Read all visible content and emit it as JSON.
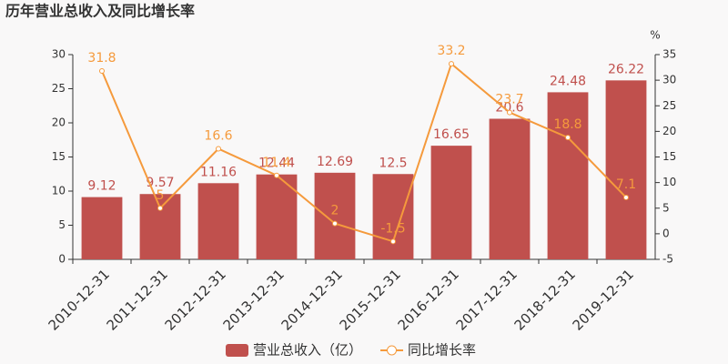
{
  "chart_data": {
    "type": "bar",
    "title": "历年营业总收入及同比增长率",
    "y2_label": "%",
    "categories": [
      "2010-12-31",
      "2011-12-31",
      "2012-12-31",
      "2013-12-31",
      "2014-12-31",
      "2015-12-31",
      "2016-12-31",
      "2017-12-31",
      "2018-12-31",
      "2019-12-31"
    ],
    "series": [
      {
        "name": "营业总收入（亿）",
        "type": "bar",
        "color": "#c0504d",
        "values": [
          9.12,
          9.57,
          11.16,
          12.44,
          12.69,
          12.5,
          16.65,
          20.6,
          24.48,
          26.22
        ]
      },
      {
        "name": "同比增长率",
        "type": "line",
        "axis": "y2",
        "color": "#f59a3c",
        "values": [
          31.8,
          5,
          16.6,
          11.4,
          2,
          -1.5,
          33.2,
          23.7,
          18.8,
          7.1
        ]
      }
    ],
    "ylim": [
      0,
      30
    ],
    "yticks": [
      0,
      5,
      10,
      15,
      20,
      25,
      30
    ],
    "y2lim": [
      -5,
      35
    ],
    "y2ticks": [
      -5,
      0,
      5,
      10,
      15,
      20,
      25,
      30,
      35
    ],
    "grid": false
  }
}
